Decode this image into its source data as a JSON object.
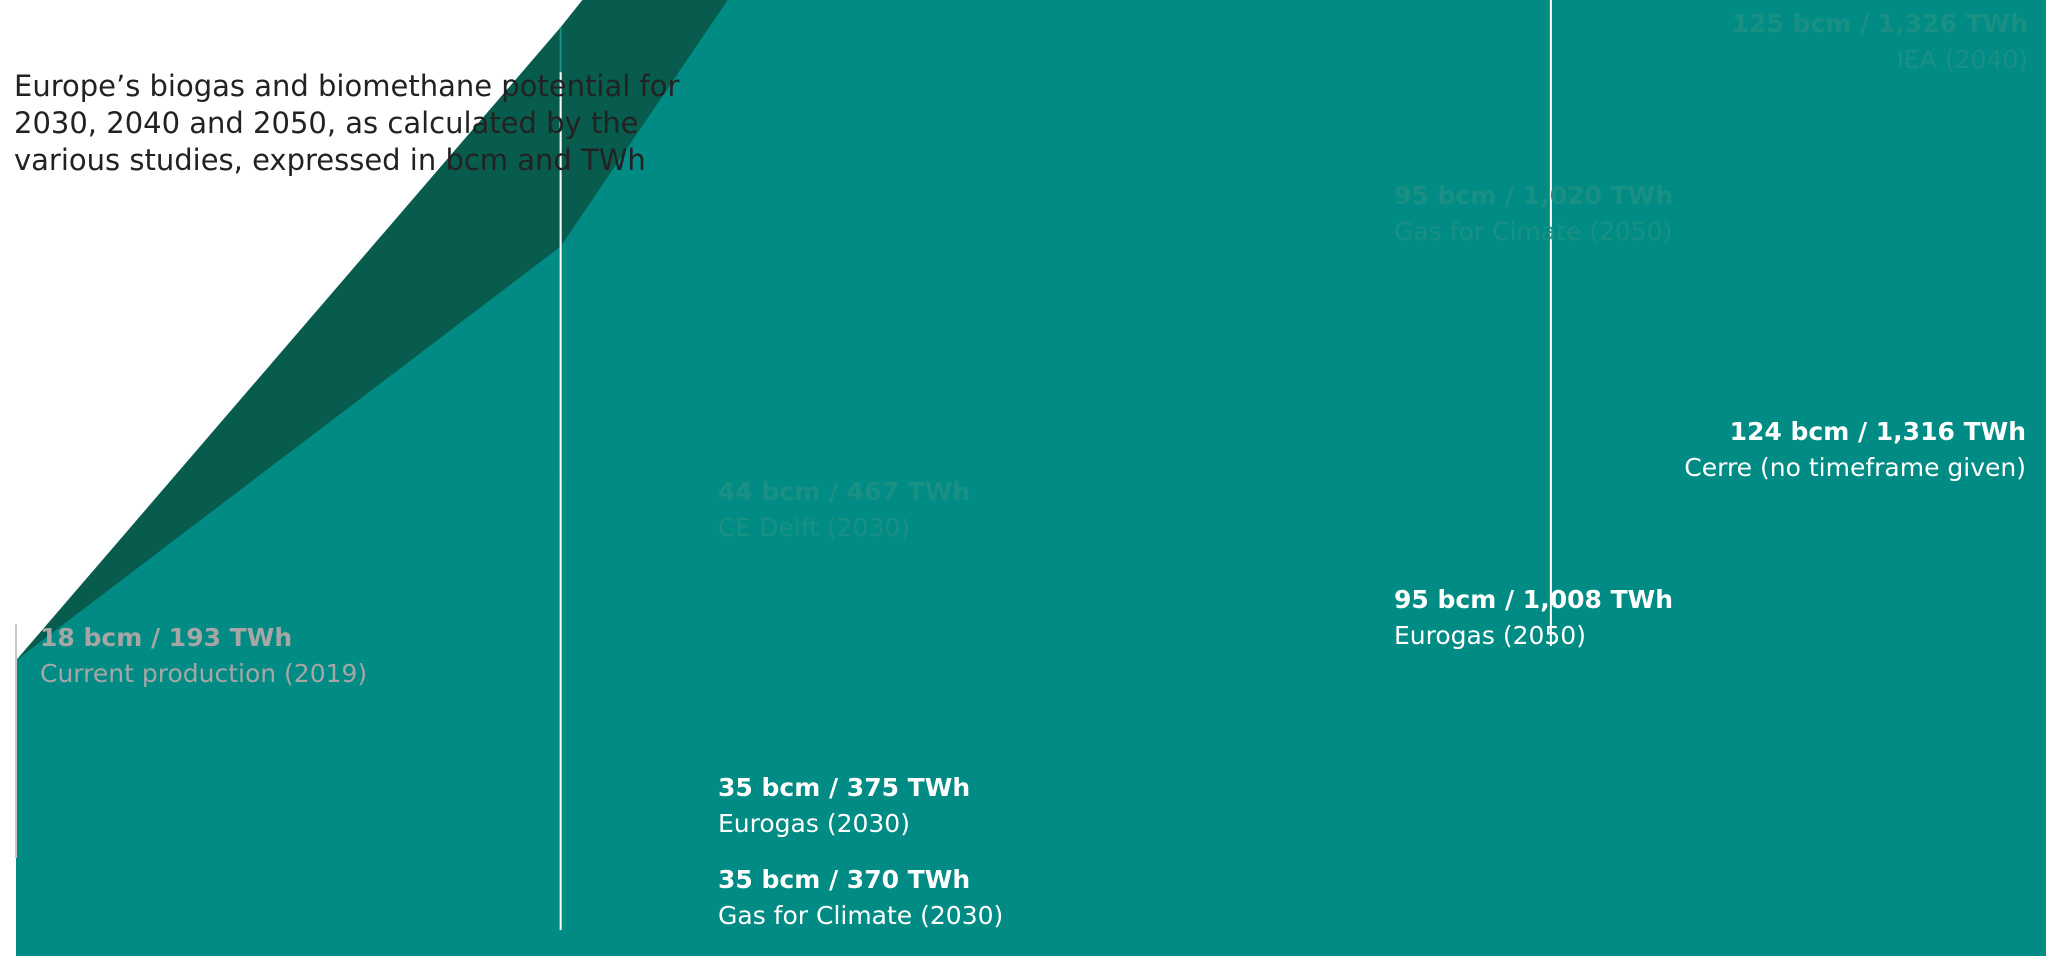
{
  "title": "Europe’s biogas and biomethane potential for 2030, 2040 and 2050, as calculated by the various studies, expressed in bcm and TWh",
  "colors": {
    "main": "#008c84",
    "dark": "#075c4d",
    "marker": "#1a8f84",
    "current_marker": "#c9c9c9",
    "label_teal": "#1a8f84",
    "label_grey": "#a6a6a6"
  },
  "chart_data": {
    "type": "area",
    "x_unit": "year",
    "y_unit": "bcm",
    "ylim": [
      0,
      125
    ],
    "series": [
      {
        "points": [
          [
            2019,
            18
          ],
          [
            2030,
            44
          ],
          [
            2050,
            95
          ],
          [
            2060,
            125
          ]
        ]
      },
      {
        "points": [
          [
            2019,
            18
          ],
          [
            2030,
            35
          ],
          [
            2050,
            95
          ],
          [
            2060,
            124
          ]
        ]
      }
    ],
    "markers": [
      {
        "x": 2019,
        "y": 18,
        "style": "grey"
      },
      {
        "x": 2030,
        "y": 44,
        "style": "teal"
      },
      {
        "x": 2050,
        "y": 95,
        "style": "teal"
      }
    ],
    "annotations": [
      {
        "id": "current",
        "value": "18 bcm / 193 TWh",
        "source": "Current production (2019)"
      },
      {
        "id": "cedelft",
        "value": "44 bcm / 467 TWh",
        "source": "CE Delft (2030)"
      },
      {
        "id": "eurogas2030",
        "value": "35 bcm / 375 TWh",
        "source": "Eurogas (2030)"
      },
      {
        "id": "gfc2030",
        "value": "35 bcm / 370 TWh",
        "source": "Gas for Climate (2030)"
      },
      {
        "id": "gfc2050",
        "value": "95 bcm / 1,020 TWh",
        "source": "Gas for Cimate (2050)"
      },
      {
        "id": "eurogas2050",
        "value": "95 bcm / 1,008 TWh",
        "source": "Eurogas (2050)"
      },
      {
        "id": "iea",
        "value": "125 bcm / 1,326 TWh",
        "source": "IEA (2040)"
      },
      {
        "id": "cerre",
        "value": "124 bcm / 1,316 TWh",
        "source": "Cerre (no timeframe given)"
      }
    ]
  }
}
